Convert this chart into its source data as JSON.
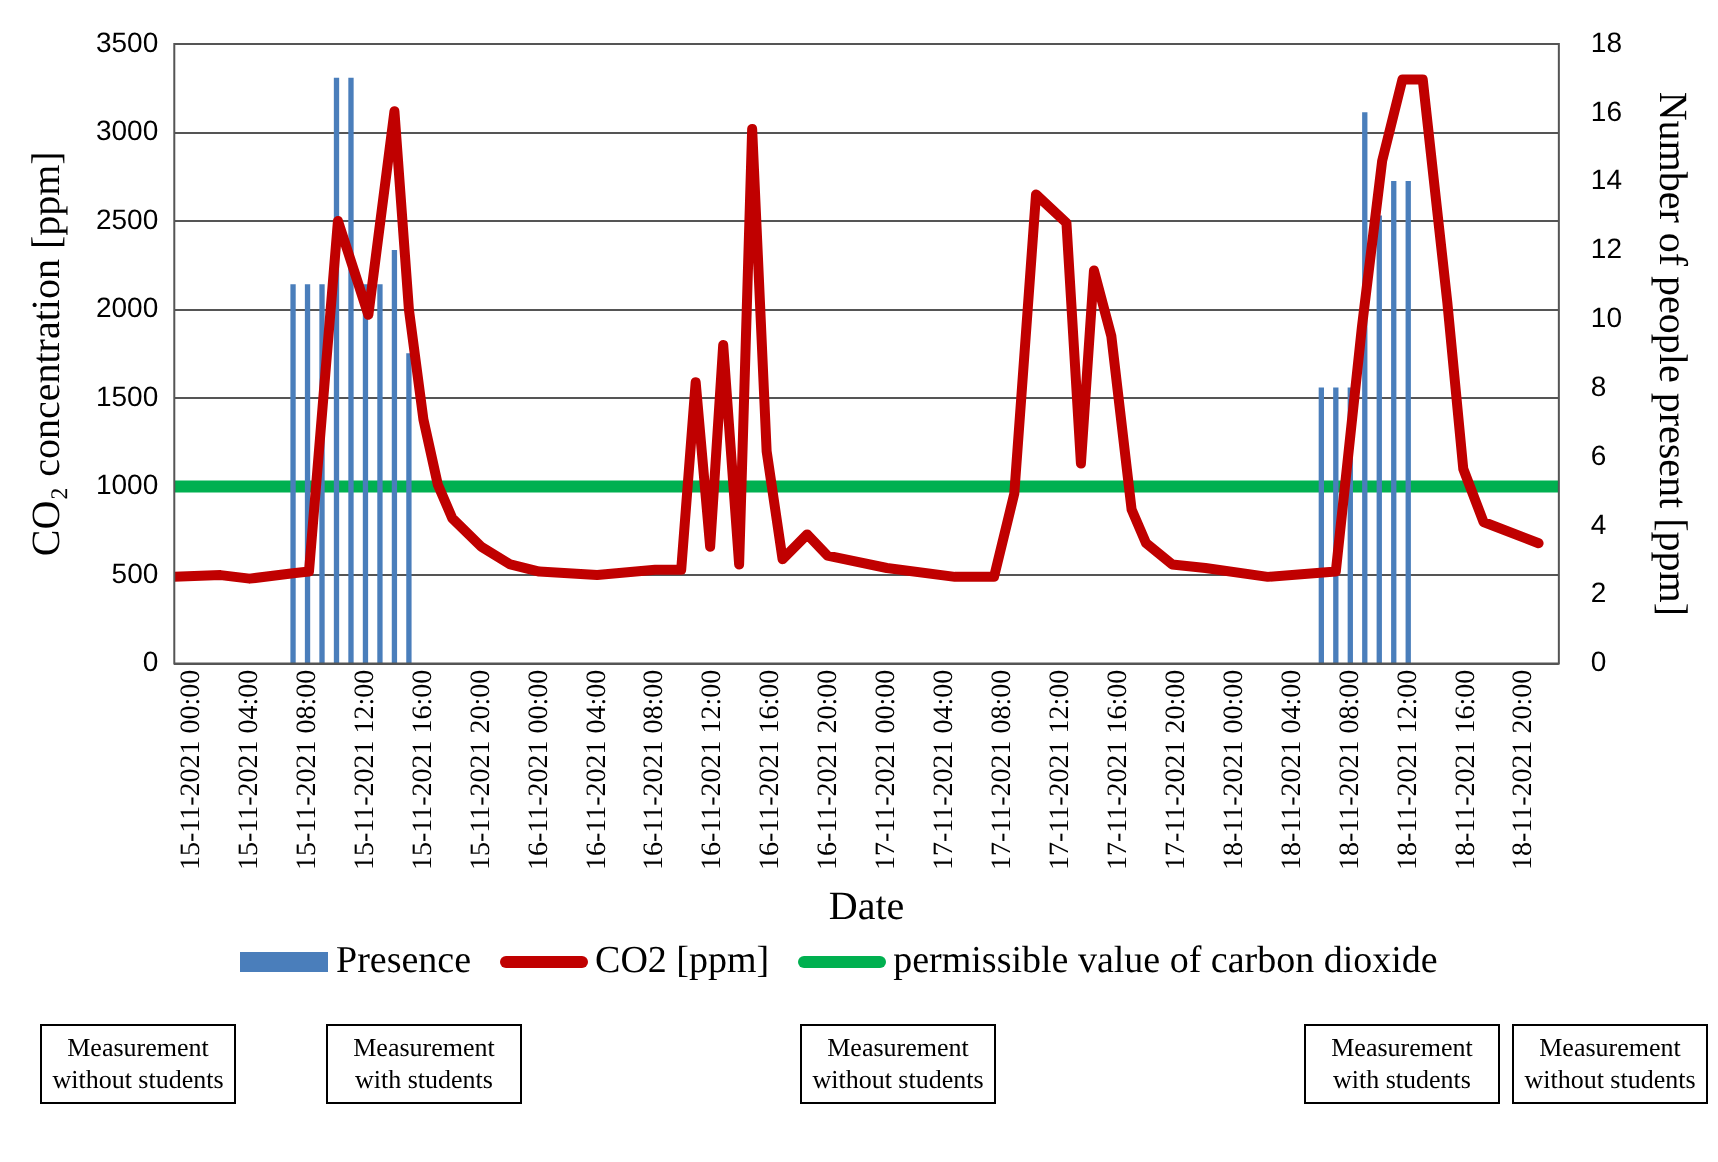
{
  "chart_data": {
    "type": "line",
    "xlabel": "Date",
    "ylabel": "CO₂ concentration [ppm]",
    "y2label": "Number of people present [ppm]",
    "xlim": [
      "2021-11-14T22:48",
      "2021-11-18T22:24"
    ],
    "xticks": [
      {
        "value": "2021-11-15T00:00",
        "label": "15-11-2021 00:00"
      },
      {
        "value": "2021-11-15T04:00",
        "label": "15-11-2021 04:00"
      },
      {
        "value": "2021-11-15T08:00",
        "label": "15-11-2021 08:00"
      },
      {
        "value": "2021-11-15T12:00",
        "label": "15-11-2021 12:00"
      },
      {
        "value": "2021-11-15T16:00",
        "label": "15-11-2021 16:00"
      },
      {
        "value": "2021-11-15T20:00",
        "label": "15-11-2021 20:00"
      },
      {
        "value": "2021-11-16T00:00",
        "label": "16-11-2021 00:00"
      },
      {
        "value": "2021-11-16T04:00",
        "label": "16-11-2021 04:00"
      },
      {
        "value": "2021-11-16T08:00",
        "label": "16-11-2021 08:00"
      },
      {
        "value": "2021-11-16T12:00",
        "label": "16-11-2021 12:00"
      },
      {
        "value": "2021-11-16T16:00",
        "label": "16-11-2021 16:00"
      },
      {
        "value": "2021-11-16T20:00",
        "label": "16-11-2021 20:00"
      },
      {
        "value": "2021-11-17T00:00",
        "label": "17-11-2021 00:00"
      },
      {
        "value": "2021-11-17T04:00",
        "label": "17-11-2021 04:00"
      },
      {
        "value": "2021-11-17T08:00",
        "label": "17-11-2021 08:00"
      },
      {
        "value": "2021-11-17T12:00",
        "label": "17-11-2021 12:00"
      },
      {
        "value": "2021-11-17T16:00",
        "label": "17-11-2021 16:00"
      },
      {
        "value": "2021-11-17T20:00",
        "label": "17-11-2021 20:00"
      },
      {
        "value": "2021-11-18T00:00",
        "label": "18-11-2021 00:00"
      },
      {
        "value": "2021-11-18T04:00",
        "label": "18-11-2021 04:00"
      },
      {
        "value": "2021-11-18T08:00",
        "label": "18-11-2021 08:00"
      },
      {
        "value": "2021-11-18T12:00",
        "label": "18-11-2021 12:00"
      },
      {
        "value": "2021-11-18T16:00",
        "label": "18-11-2021 16:00"
      },
      {
        "value": "2021-11-18T20:00",
        "label": "18-11-2021 20:00"
      }
    ],
    "ylim": [
      0,
      3500
    ],
    "yticks": [
      0,
      500,
      1000,
      1500,
      2000,
      2500,
      3000,
      3500
    ],
    "y2lim": [
      0,
      18
    ],
    "y2ticks": [
      0,
      2,
      4,
      6,
      8,
      10,
      12,
      14,
      16,
      18
    ],
    "grid": "y",
    "legend": "bottom",
    "marker": "none",
    "series": [
      {
        "type": "bar",
        "name": "Presence",
        "color": "#4a7ebb",
        "axis": "y2",
        "x": [
          "2021-11-15T07:00",
          "2021-11-15T08:00",
          "2021-11-15T09:00",
          "2021-11-15T10:00",
          "2021-11-15T11:00",
          "2021-11-15T12:00",
          "2021-11-15T13:00",
          "2021-11-15T14:00",
          "2021-11-15T15:00",
          "2021-11-18T06:00",
          "2021-11-18T07:00",
          "2021-11-18T08:00",
          "2021-11-18T09:00",
          "2021-11-18T10:00",
          "2021-11-18T11:00",
          "2021-11-18T12:00"
        ],
        "values": [
          11,
          11,
          11,
          17,
          17,
          11,
          11,
          12,
          9,
          8,
          8,
          8,
          16,
          13,
          14,
          14
        ]
      },
      {
        "name": "CO2 [ppm]",
        "color": "#c00000",
        "x": [
          "2021-11-14T22:48",
          "2021-11-15T02:00",
          "2021-11-15T04:00",
          "2021-11-15T07:00",
          "2021-11-15T08:06",
          "2021-11-15T10:06",
          "2021-11-15T12:12",
          "2021-11-15T14:00",
          "2021-11-15T15:00",
          "2021-11-15T16:00",
          "2021-11-15T17:00",
          "2021-11-15T18:00",
          "2021-11-15T20:00",
          "2021-11-15T22:00",
          "2021-11-16T00:00",
          "2021-11-16T04:00",
          "2021-11-16T08:00",
          "2021-11-16T09:48",
          "2021-11-16T10:48",
          "2021-11-16T11:48",
          "2021-11-16T12:42",
          "2021-11-16T13:48",
          "2021-11-16T14:42",
          "2021-11-16T15:42",
          "2021-11-16T16:48",
          "2021-11-16T18:30",
          "2021-11-16T19:54",
          "2021-11-17T00:00",
          "2021-11-17T04:42",
          "2021-11-17T07:24",
          "2021-11-17T08:48",
          "2021-11-17T10:18",
          "2021-11-17T12:24",
          "2021-11-17T13:24",
          "2021-11-17T14:18",
          "2021-11-17T15:30",
          "2021-11-17T16:54",
          "2021-11-17T17:54",
          "2021-11-17T19:42",
          "2021-11-17T22:00",
          "2021-11-18T02:18",
          "2021-11-18T07:00",
          "2021-11-18T08:48",
          "2021-11-18T10:12",
          "2021-11-18T11:36",
          "2021-11-18T13:00",
          "2021-11-18T14:42",
          "2021-11-18T15:48",
          "2021-11-18T17:12",
          "2021-11-18T21:00"
        ],
        "values": [
          490,
          500,
          480,
          510,
          520,
          2500,
          1970,
          3120,
          2000,
          1380,
          1010,
          820,
          660,
          560,
          520,
          500,
          530,
          530,
          1590,
          660,
          1800,
          560,
          3020,
          1200,
          590,
          730,
          610,
          540,
          490,
          490,
          960,
          2650,
          2490,
          1130,
          2220,
          1850,
          870,
          680,
          560,
          540,
          490,
          520,
          1900,
          2840,
          3300,
          3300,
          2040,
          1100,
          800,
          680
        ]
      }
    ],
    "ref_lines": [
      {
        "axis": "y",
        "value": 1000,
        "label": "permissible value of carbon dioxide",
        "color": "#00b050"
      }
    ],
    "annotations": [
      "Measurement without students",
      "Measurement with students",
      "Measurement without students",
      "Measurement with students",
      "Measurement without students"
    ]
  }
}
